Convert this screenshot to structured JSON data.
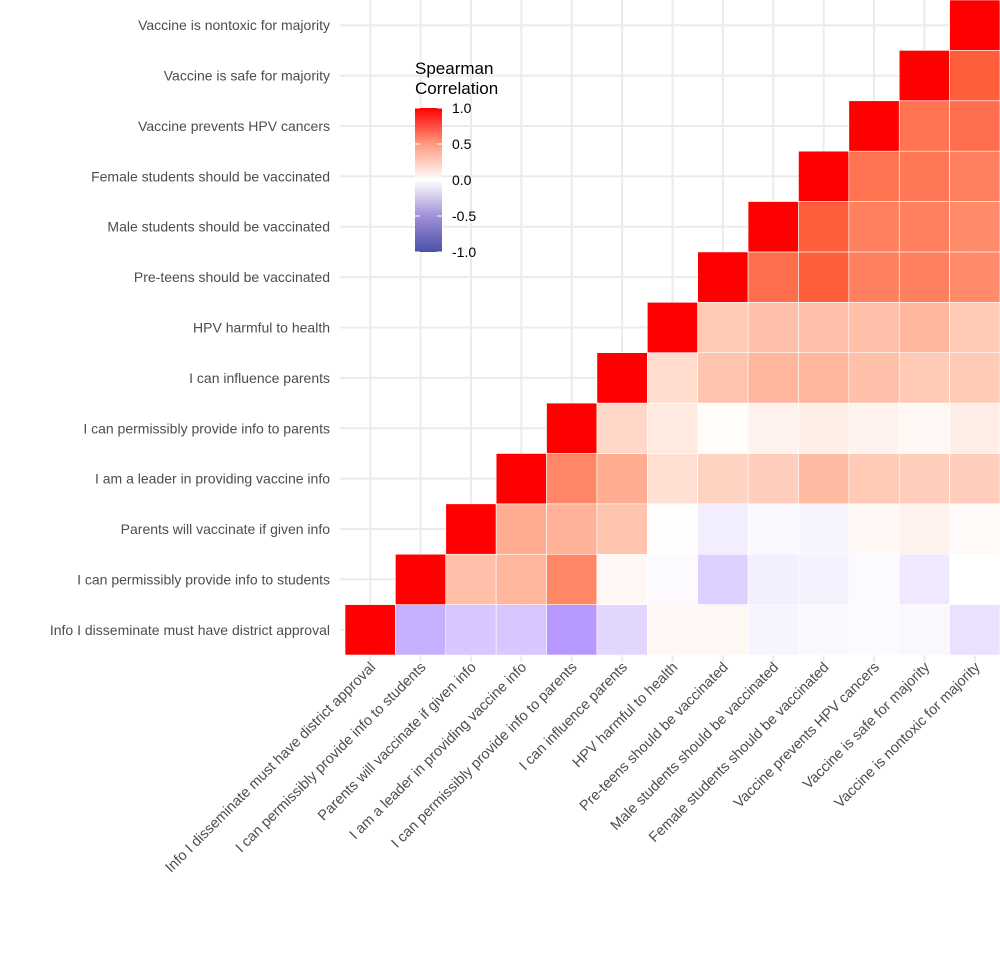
{
  "chart_data": {
    "type": "heatmap",
    "title": "",
    "xlabel": "",
    "ylabel": "",
    "variables": [
      "Info I disseminate must have district approval",
      "I can permissibly provide info to students",
      "Parents will vaccinate if given info",
      "I am a leader in providing vaccine info",
      "I can permissibly provide info to parents",
      "I can influence parents",
      "HPV harmful to health",
      "Pre-teens should be vaccinated",
      "Male students should be vaccinated",
      "Female students should be vaccinated",
      "Vaccine prevents HPV cancers",
      "Vaccine is safe for majority",
      "Vaccine is nontoxic for majority"
    ],
    "matrix": [
      [
        1,
        -0.35,
        -0.25,
        -0.25,
        -0.45,
        -0.18,
        0.05,
        0.05,
        -0.05,
        -0.03,
        -0.02,
        -0.03,
        -0.13
      ],
      [
        null,
        1,
        0.35,
        0.4,
        0.62,
        0.05,
        -0.02,
        -0.2,
        -0.07,
        -0.06,
        -0.02,
        -0.1,
        0
      ],
      [
        null,
        null,
        1,
        0.45,
        0.42,
        0.33,
        0.01,
        -0.08,
        -0.03,
        -0.05,
        0.04,
        0.08,
        0.03
      ],
      [
        null,
        null,
        null,
        1,
        0.62,
        0.45,
        0.18,
        0.25,
        0.28,
        0.38,
        0.3,
        0.28,
        0.28
      ],
      [
        null,
        null,
        null,
        null,
        1,
        0.22,
        0.12,
        0.02,
        0.08,
        0.1,
        0.07,
        0.05,
        0.1
      ],
      [
        null,
        null,
        null,
        null,
        null,
        1,
        0.2,
        0.33,
        0.4,
        0.4,
        0.35,
        0.3,
        0.3
      ],
      [
        null,
        null,
        null,
        null,
        null,
        null,
        1,
        0.3,
        0.35,
        0.35,
        0.35,
        0.4,
        0.3
      ],
      [
        null,
        null,
        null,
        null,
        null,
        null,
        null,
        1,
        0.72,
        0.78,
        0.65,
        0.65,
        0.6
      ],
      [
        null,
        null,
        null,
        null,
        null,
        null,
        null,
        null,
        1,
        0.78,
        0.65,
        0.65,
        0.6
      ],
      [
        null,
        null,
        null,
        null,
        null,
        null,
        null,
        null,
        null,
        1,
        0.7,
        0.68,
        0.65
      ],
      [
        null,
        null,
        null,
        null,
        null,
        null,
        null,
        null,
        null,
        null,
        1,
        0.7,
        0.72
      ],
      [
        null,
        null,
        null,
        null,
        null,
        null,
        null,
        null,
        null,
        null,
        null,
        1,
        0.78
      ],
      [
        null,
        null,
        null,
        null,
        null,
        null,
        null,
        null,
        null,
        null,
        null,
        null,
        1
      ]
    ],
    "color_scale": {
      "low": "#4B50A8",
      "mid": "#FFFFFF",
      "high": "#FF0000",
      "limits": [
        -1,
        1
      ]
    },
    "legend": {
      "title": "Spearman\nCorrelation",
      "title_lines": [
        "Spearman",
        "Correlation"
      ],
      "ticks": [
        "1.0",
        "0.5",
        "0.0",
        "-0.5",
        "-1.0"
      ],
      "tick_values": [
        1,
        0.5,
        0,
        -0.5,
        -1
      ],
      "placement": "inside-top-left"
    },
    "grid": true
  }
}
